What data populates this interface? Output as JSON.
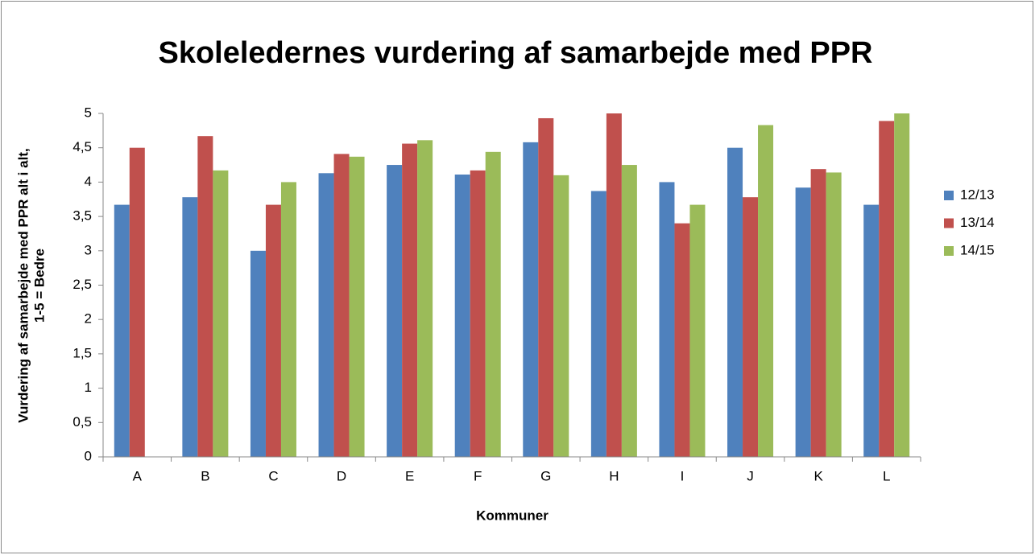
{
  "chart_data": {
    "type": "bar",
    "title": "Skoleledernes vurdering af samarbejde med PPR",
    "xlabel": "Kommuner",
    "ylabel": [
      "Vurdering af samarbejde med PPR alt i alt,",
      "1-5 = Bedre"
    ],
    "categories": [
      "A",
      "B",
      "C",
      "D",
      "E",
      "F",
      "G",
      "H",
      "I",
      "J",
      "K",
      "L"
    ],
    "series": [
      {
        "name": "12/13",
        "color": "#4f81bd",
        "values": [
          3.67,
          3.78,
          3.0,
          4.13,
          4.25,
          4.11,
          4.58,
          3.87,
          4.0,
          4.5,
          3.92,
          3.67
        ]
      },
      {
        "name": "13/14",
        "color": "#c0504d",
        "values": [
          4.5,
          4.67,
          3.67,
          4.41,
          4.56,
          4.17,
          4.93,
          5.0,
          3.4,
          3.78,
          4.19,
          4.89
        ]
      },
      {
        "name": "14/15",
        "color": "#9bbb59",
        "values": [
          null,
          4.17,
          4.0,
          4.37,
          4.61,
          4.44,
          4.1,
          4.25,
          3.67,
          4.83,
          4.14,
          5.0
        ]
      }
    ],
    "ylim": [
      0,
      5
    ],
    "yticks": [
      0,
      {
        "value": 0.5,
        "label": "0,5"
      },
      1,
      {
        "value": 1.5,
        "label": "1,5"
      },
      2,
      {
        "value": 2.5,
        "label": "2,5"
      },
      3,
      {
        "value": 3.5,
        "label": "3,5"
      },
      4,
      {
        "value": 4.5,
        "label": "4,5"
      },
      5
    ],
    "legend": "right"
  }
}
